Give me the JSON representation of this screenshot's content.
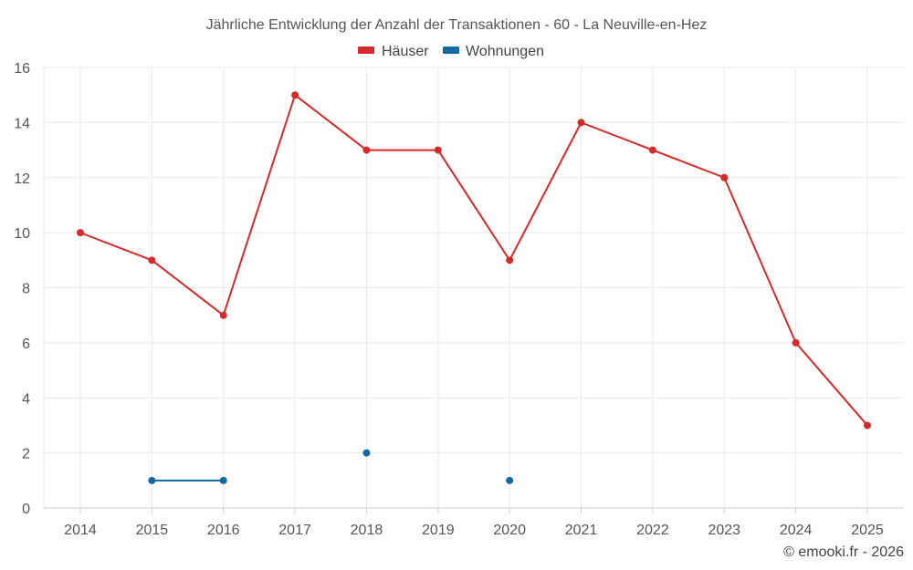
{
  "chart_data": {
    "type": "line",
    "title": "Jährliche Entwicklung der Anzahl der Transaktionen - 60 - La Neuville-en-Hez",
    "categories": [
      "2014",
      "2015",
      "2016",
      "2017",
      "2018",
      "2019",
      "2020",
      "2021",
      "2022",
      "2023",
      "2024",
      "2025"
    ],
    "series": [
      {
        "name": "Häuser",
        "color": "#d42a2a",
        "values": [
          10,
          9,
          7,
          15,
          13,
          13,
          9,
          14,
          13,
          12,
          6,
          3
        ]
      },
      {
        "name": "Wohnungen",
        "color": "#0f6aa0",
        "values": [
          null,
          1,
          1,
          null,
          2,
          null,
          1,
          null,
          null,
          null,
          null,
          null
        ]
      }
    ],
    "ylim": [
      0,
      16
    ],
    "yticks": [
      "0",
      "2",
      "4",
      "6",
      "8",
      "10",
      "12",
      "14",
      "16"
    ],
    "grid": true,
    "legend_position": "top-center"
  },
  "credit": "© emooki.fr - 2026"
}
